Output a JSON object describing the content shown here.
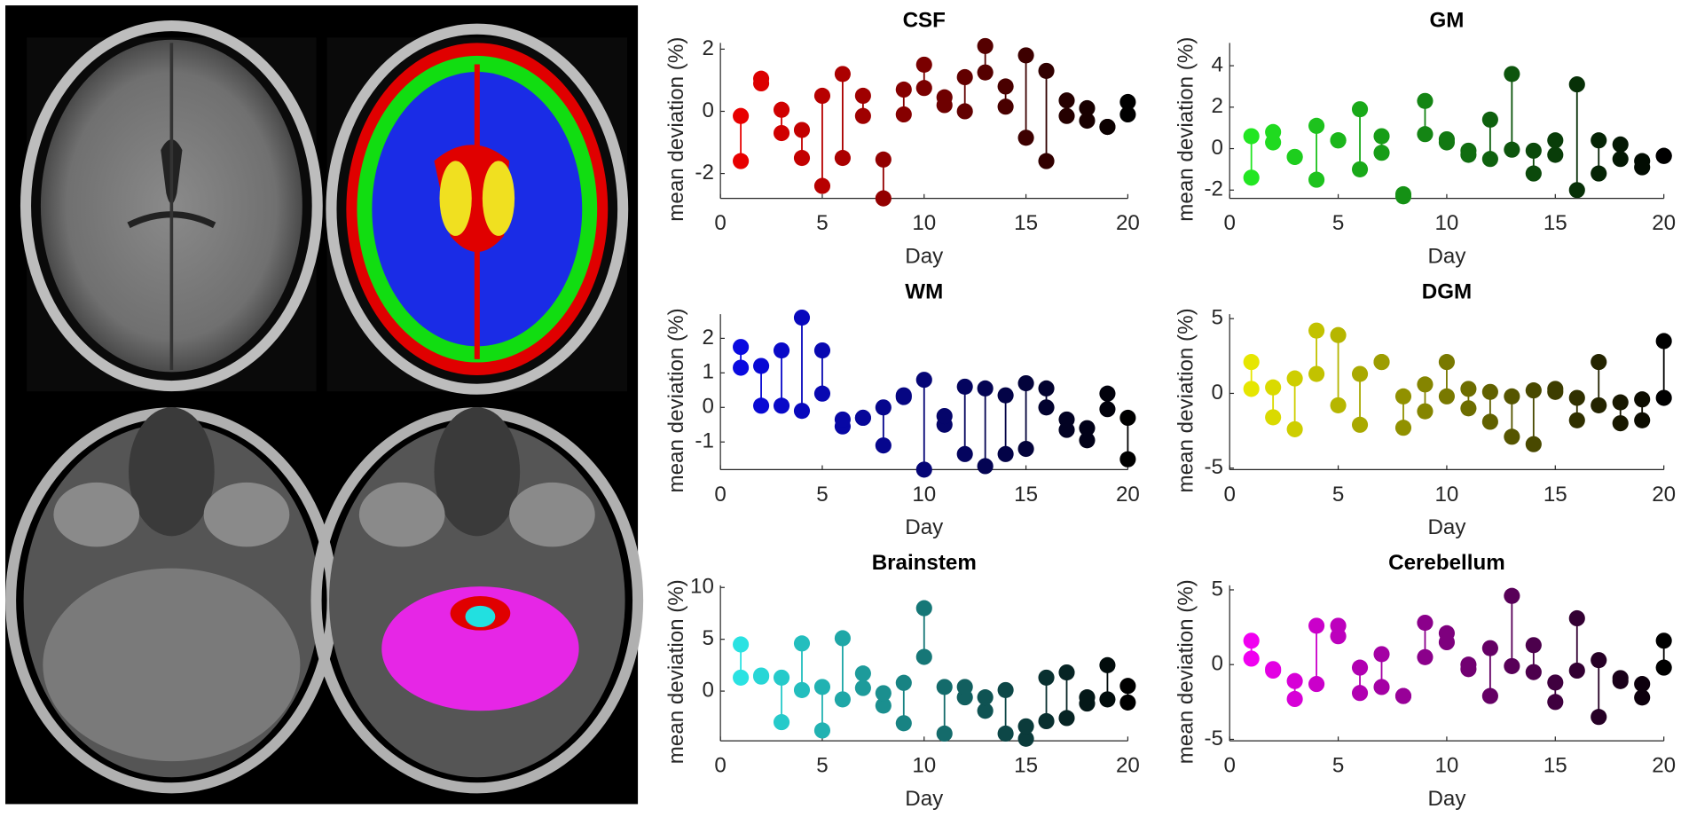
{
  "chart_data": [
    {
      "type": "dumbbell",
      "title": "CSF",
      "xlabel": "Day",
      "ylabel": "mean deviation (%)",
      "x": [
        1,
        2,
        3,
        4,
        5,
        6,
        7,
        8,
        9,
        10,
        11,
        12,
        13,
        14,
        15,
        16,
        17,
        18,
        19,
        20
      ],
      "low": [
        -1.6,
        0.9,
        -0.7,
        -1.5,
        -2.4,
        -1.5,
        -0.15,
        -2.8,
        -0.1,
        0.75,
        0.2,
        0,
        1.25,
        0.15,
        -0.85,
        -1.6,
        -0.15,
        -0.3,
        -0.5,
        -0.1
      ],
      "high": [
        -0.15,
        1.05,
        0.05,
        -0.6,
        0.5,
        1.2,
        0.5,
        -1.55,
        0.7,
        1.5,
        0.45,
        1.1,
        2.1,
        0.8,
        1.8,
        1.3,
        0.35,
        0.1,
        -0.5,
        0.3
      ],
      "color_start": "#e80000",
      "color_end": "#000000",
      "xlim": [
        0,
        20
      ],
      "xticks": [
        0,
        5,
        10,
        15,
        20
      ],
      "ylim": [
        -2.8,
        2.2
      ],
      "yticks": [
        -2,
        0,
        2
      ]
    },
    {
      "type": "dumbbell",
      "title": "GM",
      "xlabel": "Day",
      "ylabel": "mean deviation (%)",
      "x": [
        1,
        2,
        3,
        4,
        5,
        6,
        7,
        8,
        9,
        10,
        11,
        12,
        13,
        14,
        15,
        16,
        17,
        18,
        19,
        20
      ],
      "low": [
        -1.4,
        0.3,
        -0.4,
        -1.5,
        0.4,
        -1.0,
        -0.2,
        -2.3,
        0.7,
        0.3,
        -0.3,
        -0.5,
        -0.05,
        -1.2,
        -0.3,
        -2.0,
        -1.2,
        -0.5,
        -0.9,
        -0.35
      ],
      "high": [
        0.6,
        0.8,
        -0.4,
        1.1,
        0.4,
        1.9,
        0.6,
        -2.2,
        2.3,
        0.45,
        -0.1,
        1.4,
        3.6,
        -0.1,
        0.4,
        3.1,
        0.4,
        0.2,
        -0.6,
        -0.35
      ],
      "color_start": "#22e622",
      "color_end": "#000000",
      "xlim": [
        0,
        20
      ],
      "xticks": [
        0,
        5,
        10,
        15,
        20
      ],
      "ylim": [
        -2.4,
        5.1
      ],
      "yticks": [
        -2,
        0,
        2,
        4
      ]
    },
    {
      "type": "dumbbell",
      "title": "WM",
      "xlabel": "Day",
      "ylabel": "mean deviation (%)",
      "x": [
        1,
        2,
        3,
        4,
        5,
        6,
        7,
        8,
        9,
        10,
        11,
        12,
        13,
        14,
        15,
        16,
        17,
        18,
        19,
        20
      ],
      "low": [
        1.15,
        0.05,
        0.05,
        -0.1,
        0.4,
        -0.55,
        -0.3,
        -1.1,
        0.3,
        -1.8,
        -0.5,
        -1.35,
        -1.7,
        -1.35,
        -1.2,
        0,
        -0.65,
        -0.95,
        -0.05,
        -1.5
      ],
      "high": [
        1.75,
        1.2,
        1.65,
        2.6,
        1.65,
        -0.35,
        -0.3,
        0,
        0.35,
        0.8,
        -0.25,
        0.6,
        0.55,
        0.35,
        0.7,
        0.55,
        -0.35,
        -0.6,
        0.4,
        -0.3
      ],
      "color_start": "#0a0ae0",
      "color_end": "#000000",
      "xlim": [
        0,
        20
      ],
      "xticks": [
        0,
        5,
        10,
        15,
        20
      ],
      "ylim": [
        -1.8,
        2.7
      ],
      "yticks": [
        -1,
        0,
        1,
        2
      ]
    },
    {
      "type": "dumbbell",
      "title": "DGM",
      "xlabel": "Day",
      "ylabel": "mean deviation (%)",
      "x": [
        1,
        2,
        3,
        4,
        5,
        6,
        7,
        8,
        9,
        10,
        11,
        12,
        13,
        14,
        15,
        16,
        17,
        18,
        19,
        20
      ],
      "low": [
        0.3,
        -1.6,
        -2.4,
        1.3,
        -0.8,
        -2.1,
        2.1,
        -2.3,
        -1.2,
        -0.2,
        -1.0,
        -1.9,
        -2.9,
        -3.4,
        0.1,
        -1.8,
        -0.8,
        -2.0,
        -1.8,
        -0.3
      ],
      "high": [
        2.1,
        0.4,
        1.0,
        4.2,
        3.9,
        1.3,
        2.1,
        -0.2,
        0.6,
        2.1,
        0.3,
        0.1,
        -0.2,
        0.2,
        0.3,
        -0.3,
        2.1,
        -0.6,
        -0.4,
        3.5
      ],
      "color_start": "#e6e600",
      "color_end": "#000000",
      "xlim": [
        0,
        20
      ],
      "xticks": [
        0,
        5,
        10,
        15,
        20
      ],
      "ylim": [
        -5.1,
        5.3
      ],
      "yticks": [
        -5,
        0,
        5
      ]
    },
    {
      "type": "dumbbell",
      "title": "Brainstem",
      "xlabel": "Day",
      "ylabel": "mean deviation (%)",
      "x": [
        1,
        2,
        3,
        4,
        5,
        6,
        7,
        8,
        9,
        10,
        11,
        12,
        13,
        14,
        15,
        16,
        17,
        18,
        19,
        20
      ],
      "low": [
        1.3,
        1.4,
        -3.0,
        0.1,
        -3.8,
        -0.8,
        0.3,
        -1.4,
        -3.1,
        3.3,
        -4.1,
        -0.6,
        -1.9,
        -4.1,
        -4.6,
        -2.9,
        -2.6,
        -1.2,
        -0.8,
        -1.1
      ],
      "high": [
        4.5,
        1.5,
        1.3,
        4.6,
        0.4,
        5.1,
        1.7,
        -0.2,
        0.8,
        8.0,
        0.4,
        0.4,
        -0.6,
        0.1,
        -3.4,
        1.3,
        1.8,
        -0.6,
        2.5,
        0.5
      ],
      "color_start": "#2ae2e2",
      "color_end": "#000000",
      "xlim": [
        0,
        20
      ],
      "xticks": [
        0,
        5,
        10,
        15,
        20
      ],
      "ylim": [
        -4.8,
        10.2
      ],
      "yticks": [
        0,
        5,
        10
      ]
    },
    {
      "type": "dumbbell",
      "title": "Cerebellum",
      "xlabel": "Day",
      "ylabel": "mean deviation (%)",
      "x": [
        1,
        2,
        3,
        4,
        5,
        6,
        7,
        8,
        9,
        10,
        11,
        12,
        13,
        14,
        15,
        16,
        17,
        18,
        19,
        20
      ],
      "low": [
        0.4,
        -0.4,
        -2.3,
        -1.3,
        1.9,
        -1.9,
        -1.5,
        -2.1,
        0.5,
        1.5,
        -0.3,
        -2.1,
        -0.1,
        -0.5,
        -2.5,
        -0.4,
        -3.5,
        -1.1,
        -2.2,
        -0.2
      ],
      "high": [
        1.6,
        -0.3,
        -1.1,
        2.6,
        2.6,
        -0.2,
        0.7,
        -2.1,
        2.8,
        2.1,
        0,
        1.1,
        4.6,
        1.3,
        -1.2,
        3.1,
        0.3,
        -0.9,
        -1.3,
        1.6
      ],
      "color_start": "#f000f0",
      "color_end": "#000000",
      "xlim": [
        0,
        20
      ],
      "xticks": [
        0,
        5,
        10,
        15,
        20
      ],
      "ylim": [
        -5.1,
        5.3
      ],
      "yticks": [
        -5,
        0,
        5
      ]
    }
  ]
}
